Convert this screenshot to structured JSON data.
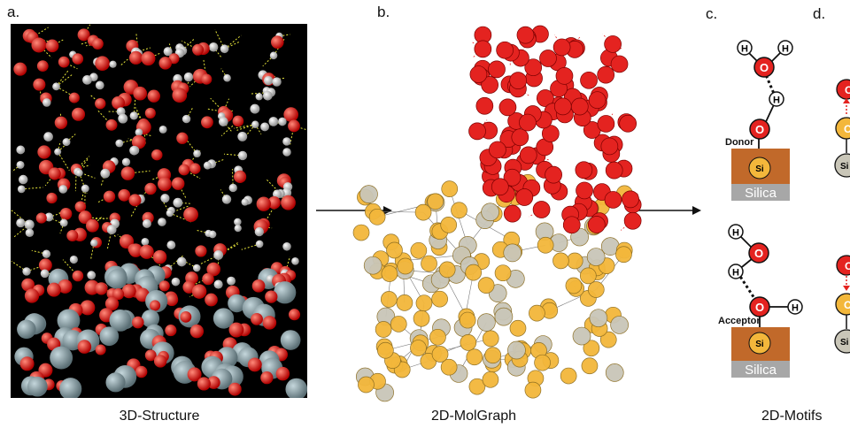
{
  "panels": {
    "a": {
      "label": "a.",
      "caption": "3D-Structure"
    },
    "b": {
      "label": "b.",
      "caption": "2D-MolGraph"
    },
    "c": {
      "label": "c."
    },
    "d": {
      "label": "d."
    },
    "motifs_caption": "2D-Motifs"
  },
  "motif_top": {
    "role": "Donor",
    "surface": "Silica",
    "water_h": "H",
    "water_o": "O",
    "bridge_h": "H",
    "surface_o": "O",
    "si": "Si"
  },
  "motif_bottom": {
    "role": "Acceptor",
    "surface": "Silica",
    "water_h1": "H",
    "water_h2": "H",
    "water_o": "O",
    "surface_o": "O",
    "surface_h": "H",
    "si": "Si"
  },
  "partial": {
    "o": "O",
    "si": "Si"
  },
  "colors": {
    "oxygen": "#e42320",
    "silicon": "#b9b5aa",
    "surface_o": "#f3b73b",
    "hydrogen": "#ffffff",
    "slab": "#c1692a",
    "silica_bar": "#a7a7a7"
  }
}
